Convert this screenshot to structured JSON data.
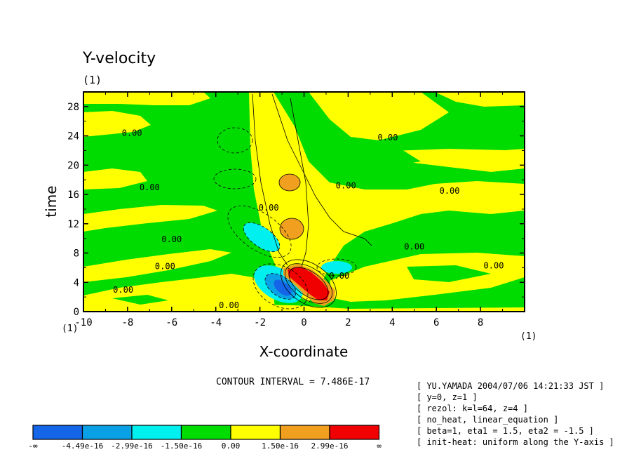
{
  "chart_data": {
    "type": "heatmap",
    "title": "Y-velocity",
    "unit_label": "(1)",
    "xlabel": "X-coordinate",
    "ylabel": "time",
    "x_unit": "(1)",
    "y_unit": "(1)",
    "xlim": [
      -10,
      10
    ],
    "ylim": [
      0,
      30
    ],
    "x_ticks": [
      "-10",
      "-8",
      "-6",
      "-4",
      "-2",
      "0",
      "2",
      "4",
      "6",
      "8"
    ],
    "y_ticks": [
      "0",
      "4",
      "8",
      "12",
      "16",
      "20",
      "24",
      "28"
    ],
    "contour_interval_text": "CONTOUR INTERVAL = 7.486E-17",
    "contour_labels": [
      {
        "text": "0.00",
        "x": -7.8,
        "y": 24.0
      },
      {
        "text": "0.00",
        "x": -7.0,
        "y": 16.6
      },
      {
        "text": "0.00",
        "x": -6.0,
        "y": 9.5
      },
      {
        "text": "0.00",
        "x": -6.3,
        "y": 5.8
      },
      {
        "text": "0.00",
        "x": -8.2,
        "y": 2.6
      },
      {
        "text": "0.00",
        "x": -3.4,
        "y": 0.5
      },
      {
        "text": "0.00",
        "x": 1.9,
        "y": 16.8
      },
      {
        "text": "0.00",
        "x": 3.8,
        "y": 23.4
      },
      {
        "text": "0.00",
        "x": 6.6,
        "y": 16.1
      },
      {
        "text": "0.00",
        "x": 5.0,
        "y": 8.5
      },
      {
        "text": "0.00",
        "x": 8.6,
        "y": 5.9
      },
      {
        "text": "0.00",
        "x": 1.6,
        "y": 4.5
      },
      {
        "text": "0.00",
        "x": -1.6,
        "y": 13.8
      }
    ],
    "colorbar": {
      "colors": [
        "#1565e8",
        "#0aa0e6",
        "#00f0f0",
        "#00dc00",
        "#ffff00",
        "#f0a01e",
        "#f00000"
      ],
      "labels": [
        "-∞",
        "-4.49e-16",
        "-2.99e-16",
        "-1.50e-16",
        "0.00",
        "1.50e-16",
        "2.99e-16",
        "∞"
      ]
    },
    "features": [
      {
        "name": "positive core (red)",
        "x": 0.3,
        "y": 3.5,
        "level": "max"
      },
      {
        "name": "negative core (blue)",
        "x": -0.9,
        "y": 3.0,
        "level": "min"
      },
      {
        "name": "negative lobe (cyan)",
        "x": -2.3,
        "y": 10.6
      },
      {
        "name": "negative lobe (cyan)",
        "x": 1.3,
        "y": 5.8
      },
      {
        "name": "positive lobe (orange)",
        "x": -0.6,
        "y": 17.7
      },
      {
        "name": "positive lobe (orange)",
        "x": -0.6,
        "y": 11.7
      }
    ]
  },
  "info_lines": [
    "[ YU.YAMADA 2004/07/06 14:21:33 JST ]",
    "[ y=0, z=1 ]",
    "[ rezol: k=l=64, z=4 ]",
    "[ no_heat, linear_equation ]",
    "[ beta=1, eta1 = 1.5, eta2 = -1.5 ]",
    "[ init-heat: uniform along the Y-axis ]"
  ]
}
